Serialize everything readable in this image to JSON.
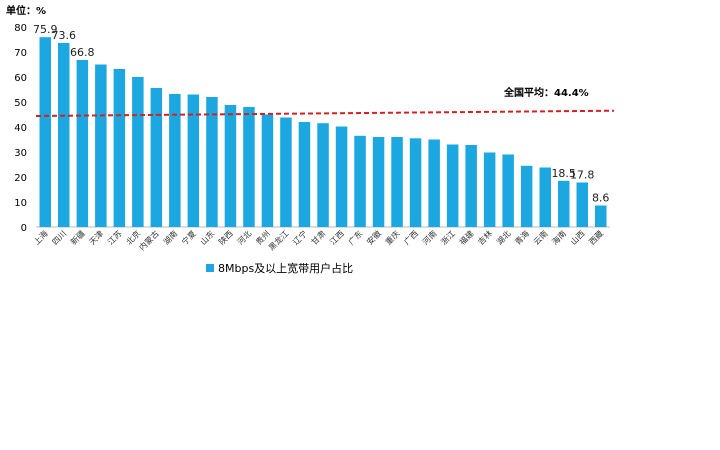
{
  "chart_data": {
    "type": "bar",
    "unit_label": "单位：%",
    "ylim": [
      0,
      80
    ],
    "yticks": [
      0,
      10,
      20,
      30,
      40,
      50,
      60,
      70,
      80
    ],
    "categories": [
      "上海",
      "四川",
      "新疆",
      "天津",
      "江苏",
      "北京",
      "内蒙古",
      "湖南",
      "宁夏",
      "山东",
      "陕西",
      "河北",
      "贵州",
      "黑龙江",
      "辽宁",
      "甘肃",
      "江西",
      "广东",
      "安徽",
      "重庆",
      "广西",
      "河南",
      "浙江",
      "福建",
      "吉林",
      "湖北",
      "青海",
      "云南",
      "海南",
      "山西",
      "西藏"
    ],
    "series": [
      {
        "name": "8Mbps及以上宽带用户占比",
        "values": [
          75.9,
          73.6,
          66.8,
          65.0,
          63.2,
          60.0,
          55.6,
          53.2,
          53.0,
          52.0,
          48.8,
          48.0,
          45.0,
          43.8,
          42.0,
          41.5,
          40.2,
          36.5,
          36.0,
          36.0,
          35.5,
          35.0,
          33.0,
          32.8,
          29.8,
          29.0,
          24.5,
          23.8,
          18.5,
          17.8,
          8.6
        ],
        "labels": [
          "75.9",
          "73.6",
          "66.8",
          "",
          "",
          "",
          "",
          "",
          "",
          "",
          "",
          "",
          "",
          "",
          "",
          "",
          "",
          "",
          "",
          "",
          "",
          "",
          "",
          "",
          "",
          "",
          "",
          "",
          "18.5",
          "17.8",
          "8.6"
        ]
      }
    ],
    "average": {
      "label": "全国平均：44.4%",
      "value_start": 44.4,
      "value_end": 46.5
    },
    "grid": false,
    "legend_position": "bottom",
    "colors": {
      "bar": "#1ca7e0",
      "avg_line": "#d62020"
    }
  }
}
